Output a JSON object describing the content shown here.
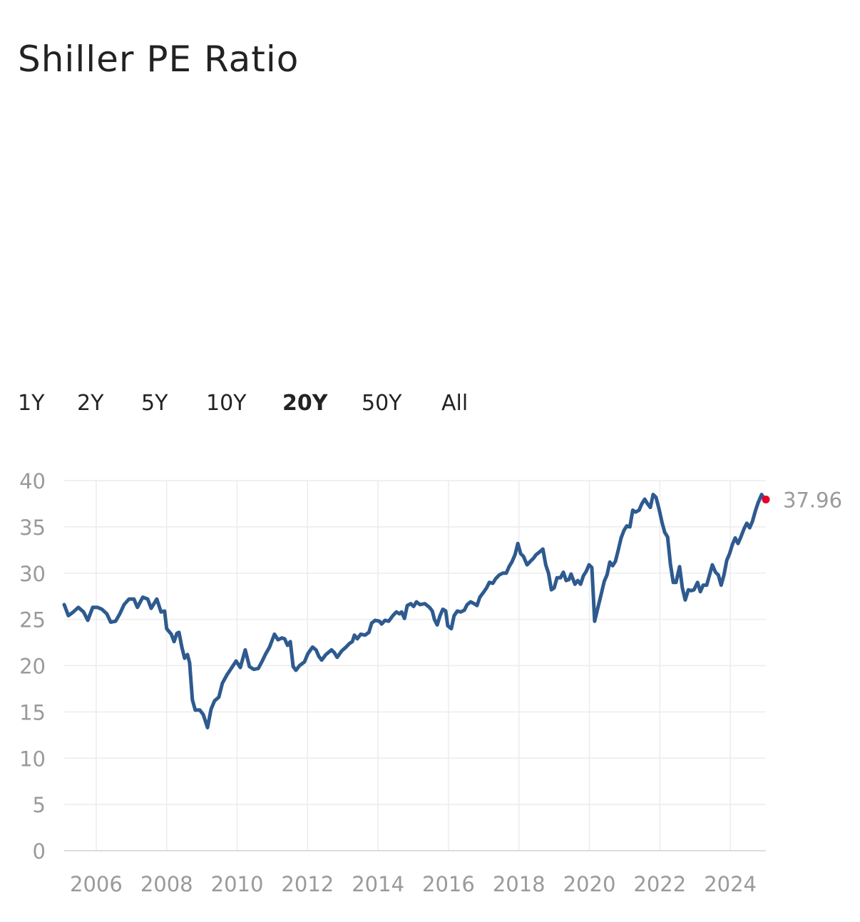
{
  "range_buttons": [
    "1Y",
    "2Y",
    "5Y",
    "10Y",
    "20Y",
    "50Y",
    "All"
  ],
  "active_range": 4,
  "chart_data": {
    "type": "line",
    "title": "Shiller PE Ratio",
    "x": [
      2005.09,
      2005.21,
      2005.35,
      2005.49,
      2005.64,
      2005.76,
      2005.9,
      2006.04,
      2006.16,
      2006.3,
      2006.41,
      2006.55,
      2006.67,
      2006.79,
      2006.93,
      2007.07,
      2007.17,
      2007.32,
      2007.46,
      2007.56,
      2007.72,
      2007.84,
      2007.94,
      2008.0,
      2008.13,
      2008.21,
      2008.29,
      2008.35,
      2008.43,
      2008.51,
      2008.59,
      2008.65,
      2008.73,
      2008.81,
      2008.94,
      2009.04,
      2009.16,
      2009.26,
      2009.36,
      2009.48,
      2009.58,
      2009.71,
      2009.85,
      2009.97,
      2010.09,
      2010.23,
      2010.35,
      2010.47,
      2010.6,
      2010.7,
      2010.8,
      2010.92,
      2011.06,
      2011.16,
      2011.27,
      2011.35,
      2011.43,
      2011.51,
      2011.59,
      2011.67,
      2011.77,
      2011.91,
      2012.01,
      2012.14,
      2012.24,
      2012.32,
      2012.4,
      2012.52,
      2012.68,
      2012.76,
      2012.84,
      2012.97,
      2013.09,
      2013.19,
      2013.27,
      2013.33,
      2013.41,
      2013.51,
      2013.63,
      2013.74,
      2013.82,
      2013.92,
      2014.04,
      2014.1,
      2014.2,
      2014.3,
      2014.42,
      2014.52,
      2014.61,
      2014.67,
      2014.75,
      2014.83,
      2014.93,
      2015.01,
      2015.09,
      2015.19,
      2015.33,
      2015.46,
      2015.54,
      2015.6,
      2015.68,
      2015.76,
      2015.84,
      2015.92,
      2015.98,
      2016.08,
      2016.16,
      2016.25,
      2016.35,
      2016.45,
      2016.53,
      2016.63,
      2016.73,
      2016.81,
      2016.89,
      2016.99,
      2017.08,
      2017.16,
      2017.26,
      2017.34,
      2017.44,
      2017.54,
      2017.64,
      2017.72,
      2017.8,
      2017.89,
      2017.97,
      2018.05,
      2018.13,
      2018.23,
      2018.33,
      2018.41,
      2018.49,
      2018.59,
      2018.68,
      2018.76,
      2018.84,
      2018.92,
      2019.0,
      2019.08,
      2019.18,
      2019.26,
      2019.34,
      2019.42,
      2019.48,
      2019.59,
      2019.67,
      2019.75,
      2019.83,
      2019.91,
      2019.99,
      2020.07,
      2020.15,
      2020.23,
      2020.34,
      2020.42,
      2020.5,
      2020.58,
      2020.66,
      2020.74,
      2020.82,
      2020.9,
      2020.98,
      2021.06,
      2021.15,
      2021.23,
      2021.31,
      2021.41,
      2021.49,
      2021.57,
      2021.65,
      2021.73,
      2021.81,
      2021.89,
      2021.98,
      2022.06,
      2022.14,
      2022.22,
      2022.3,
      2022.38,
      2022.46,
      2022.56,
      2022.64,
      2022.72,
      2022.81,
      2022.89,
      2022.97,
      2023.07,
      2023.15,
      2023.23,
      2023.33,
      2023.41,
      2023.49,
      2023.58,
      2023.66,
      2023.74,
      2023.82,
      2023.9,
      2023.98,
      2024.06,
      2024.14,
      2024.22,
      2024.3,
      2024.39,
      2024.47,
      2024.55,
      2024.63,
      2024.71,
      2024.79,
      2024.89,
      2024.95,
      2025.01
    ],
    "series": [
      {
        "color": "#2e5a8f",
        "last_point_color": "#e4002b",
        "values": [
          26.6,
          25.4,
          25.8,
          26.3,
          25.8,
          24.9,
          26.3,
          26.3,
          26.1,
          25.6,
          24.7,
          24.8,
          25.6,
          26.6,
          27.2,
          27.2,
          26.3,
          27.4,
          27.2,
          26.2,
          27.2,
          25.8,
          25.9,
          24.0,
          23.4,
          22.6,
          23.5,
          23.6,
          22.0,
          20.8,
          21.2,
          20.3,
          16.3,
          15.2,
          15.2,
          14.7,
          13.3,
          15.3,
          16.2,
          16.6,
          18.1,
          19.0,
          19.8,
          20.5,
          19.8,
          21.7,
          19.9,
          19.6,
          19.7,
          20.4,
          21.2,
          22.0,
          23.4,
          22.8,
          23.0,
          22.9,
          22.2,
          22.6,
          19.9,
          19.5,
          20.0,
          20.4,
          21.3,
          22.0,
          21.7,
          21.0,
          20.6,
          21.2,
          21.7,
          21.4,
          20.9,
          21.6,
          22.0,
          22.4,
          22.6,
          23.3,
          22.9,
          23.4,
          23.3,
          23.6,
          24.6,
          24.9,
          24.8,
          24.5,
          24.9,
          24.8,
          25.4,
          25.8,
          25.6,
          25.8,
          25.1,
          26.5,
          26.7,
          26.4,
          26.9,
          26.6,
          26.7,
          26.3,
          25.9,
          25.0,
          24.4,
          25.4,
          26.1,
          25.9,
          24.3,
          24.0,
          25.4,
          25.9,
          25.8,
          26.0,
          26.6,
          26.9,
          26.7,
          26.5,
          27.4,
          27.9,
          28.4,
          29.0,
          28.9,
          29.4,
          29.8,
          30.0,
          30.0,
          30.7,
          31.2,
          32.0,
          33.2,
          32.1,
          31.8,
          30.9,
          31.3,
          31.6,
          32.0,
          32.3,
          32.6,
          30.9,
          30.0,
          28.2,
          28.4,
          29.5,
          29.5,
          30.1,
          29.2,
          29.3,
          29.9,
          28.8,
          29.2,
          28.8,
          29.7,
          30.2,
          30.9,
          30.6,
          24.8,
          26.1,
          27.8,
          29.1,
          29.8,
          31.2,
          30.8,
          31.3,
          32.5,
          33.8,
          34.6,
          35.1,
          35.0,
          36.8,
          36.6,
          36.8,
          37.5,
          38.0,
          37.5,
          37.1,
          38.5,
          38.2,
          36.9,
          35.5,
          34.4,
          33.9,
          31.0,
          29.0,
          29.0,
          30.7,
          28.4,
          27.1,
          28.2,
          28.1,
          28.2,
          29.0,
          28.0,
          28.7,
          28.7,
          29.8,
          30.9,
          30.1,
          29.8,
          28.7,
          29.8,
          31.4,
          32.1,
          33.1,
          33.8,
          33.2,
          33.9,
          34.8,
          35.4,
          34.9,
          35.6,
          36.7,
          37.6,
          38.5,
          38.1,
          37.96
        ]
      }
    ],
    "xlim": [
      2005.09,
      2025.01
    ],
    "xticks": [
      2006,
      2008,
      2010,
      2012,
      2014,
      2016,
      2018,
      2020,
      2022,
      2024
    ],
    "ylim": [
      0,
      40
    ],
    "yticks": [
      0,
      5,
      10,
      15,
      20,
      25,
      30,
      35,
      40
    ],
    "grid": true
  }
}
